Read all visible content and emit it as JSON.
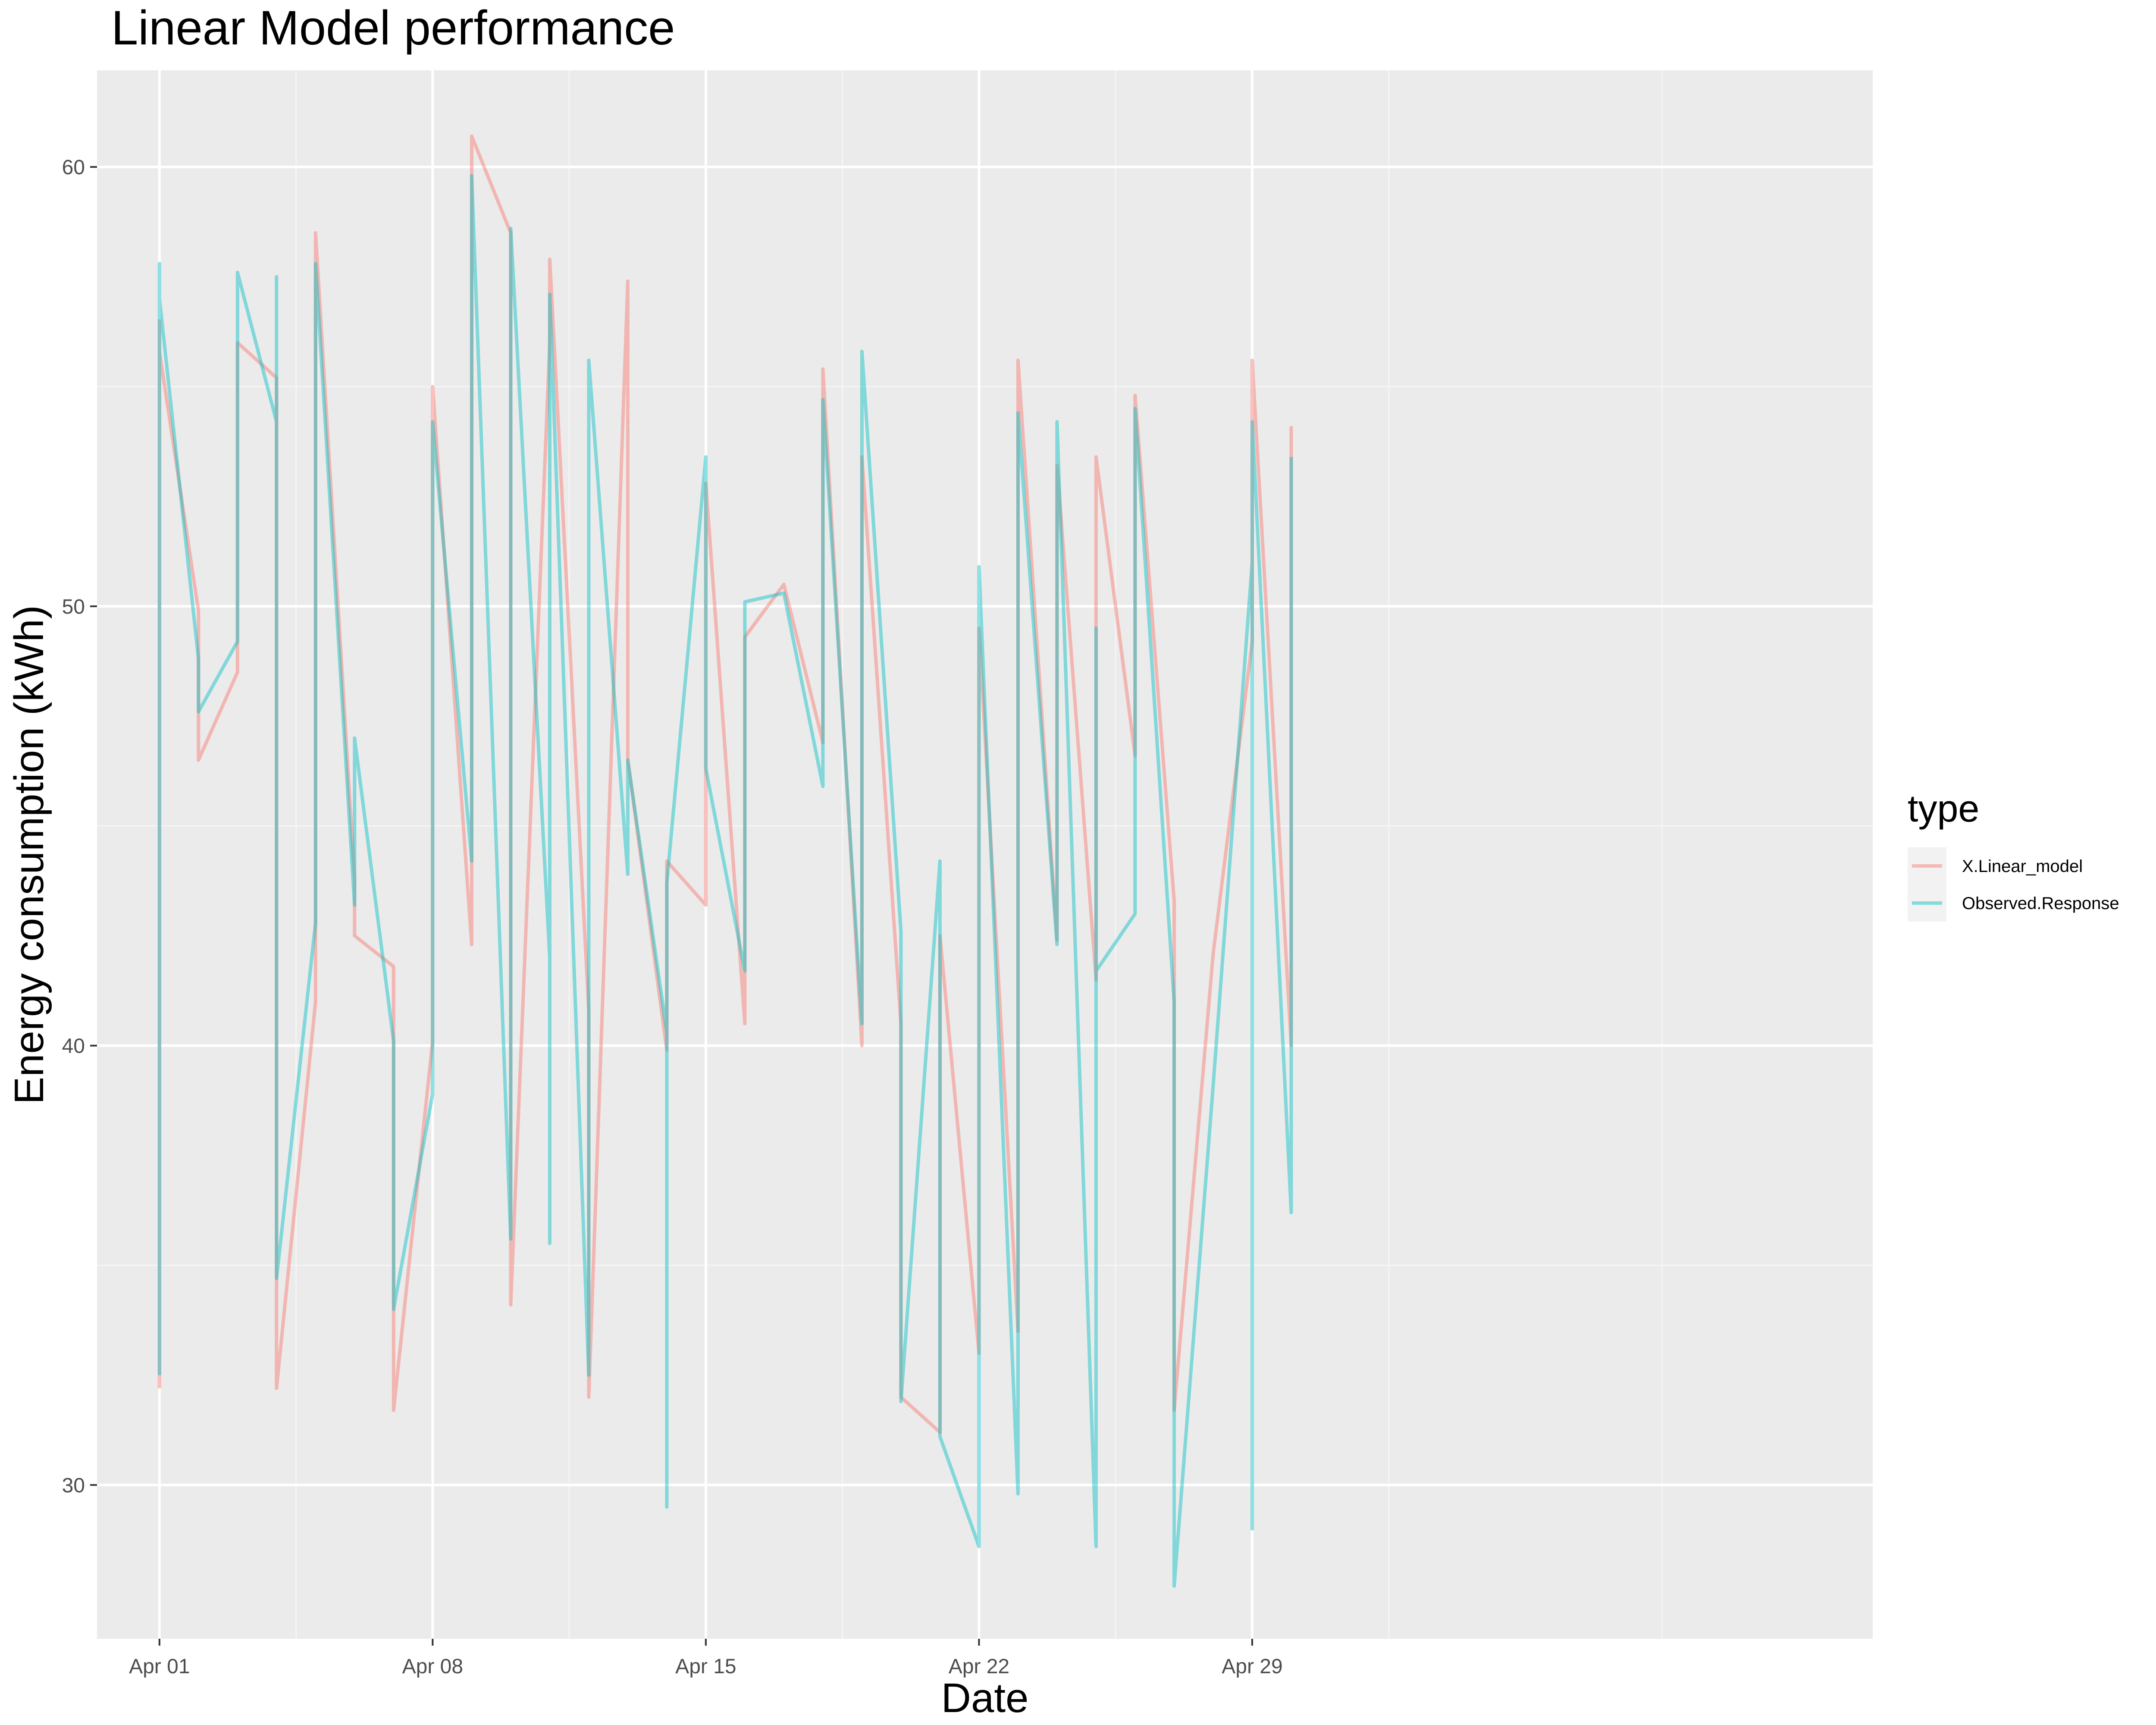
{
  "chart_data": {
    "type": "line",
    "title": "Linear Model performance",
    "xlabel": "Date",
    "ylabel": "Energy consumption (kWh)",
    "xlim": [
      -1.6,
      43.9
    ],
    "ylim": [
      26.5,
      62.2
    ],
    "x_ticks": [
      {
        "x": 0,
        "label": "Apr 01"
      },
      {
        "x": 7,
        "label": "Apr 08"
      },
      {
        "x": 14,
        "label": "Apr 15"
      },
      {
        "x": 21,
        "label": "Apr 22"
      },
      {
        "x": 28,
        "label": "Apr 29"
      }
    ],
    "y_ticks": [
      {
        "y": 30,
        "label": "30"
      },
      {
        "y": 40,
        "label": "40"
      },
      {
        "y": 50,
        "label": "50"
      },
      {
        "y": 60,
        "label": "60"
      }
    ],
    "grid": true,
    "legend_position": "right",
    "legend_title": "type",
    "series": [
      {
        "name": "X.Linear_model",
        "color": "#F8766D",
        "points": [
          [
            0,
            32.2
          ],
          [
            0,
            56.5
          ],
          [
            0,
            55.8
          ],
          [
            1,
            49.9
          ],
          [
            1,
            46.5
          ],
          [
            2,
            48.5
          ],
          [
            2,
            56.0
          ],
          [
            3,
            55.2
          ],
          [
            3,
            32.2
          ],
          [
            4,
            41.0
          ],
          [
            4,
            58.5
          ],
          [
            5,
            43.8
          ],
          [
            5,
            42.5
          ],
          [
            6,
            41.8
          ],
          [
            6,
            31.7
          ],
          [
            7,
            40.1
          ],
          [
            7,
            55.0
          ],
          [
            8,
            42.3
          ],
          [
            8,
            60.7
          ],
          [
            9,
            58.5
          ],
          [
            9,
            34.1
          ],
          [
            10,
            56.0
          ],
          [
            10,
            57.9
          ],
          [
            11,
            40.8
          ],
          [
            11,
            32.0
          ],
          [
            12,
            57.4
          ],
          [
            12,
            46.5
          ],
          [
            13,
            39.9
          ],
          [
            13,
            44.2
          ],
          [
            14,
            43.2
          ],
          [
            14,
            52.8
          ],
          [
            15,
            40.5
          ],
          [
            15,
            49.3
          ],
          [
            16,
            50.5
          ],
          [
            17,
            46.9
          ],
          [
            17,
            55.4
          ],
          [
            18,
            40.0
          ],
          [
            18,
            53.4
          ],
          [
            19,
            40.5
          ],
          [
            19,
            32.0
          ],
          [
            20,
            31.2
          ],
          [
            20,
            42.5
          ],
          [
            21,
            33.0
          ],
          [
            21,
            49.5
          ],
          [
            22,
            33.5
          ],
          [
            22,
            55.6
          ],
          [
            23,
            42.4
          ],
          [
            23,
            53.2
          ],
          [
            24,
            41.5
          ],
          [
            24,
            53.4
          ],
          [
            25,
            46.6
          ],
          [
            25,
            54.8
          ],
          [
            26,
            43.3
          ],
          [
            26,
            31.7
          ],
          [
            27,
            42.1
          ],
          [
            28,
            49.2
          ],
          [
            28,
            55.6
          ],
          [
            29,
            40.0
          ],
          [
            29,
            54.1
          ]
        ]
      },
      {
        "name": "Observed.Response",
        "color": "#00BFC4",
        "points": [
          [
            0,
            32.5
          ],
          [
            0,
            57.8
          ],
          [
            0,
            57.0
          ],
          [
            1,
            48.8
          ],
          [
            1,
            47.6
          ],
          [
            2,
            49.2
          ],
          [
            2,
            57.6
          ],
          [
            3,
            54.2
          ],
          [
            3,
            57.5
          ],
          [
            3,
            34.7
          ],
          [
            4,
            42.8
          ],
          [
            4,
            57.8
          ],
          [
            5,
            43.2
          ],
          [
            5,
            47.0
          ],
          [
            6,
            40.1
          ],
          [
            6,
            34.0
          ],
          [
            7,
            38.9
          ],
          [
            7,
            54.2
          ],
          [
            8,
            44.2
          ],
          [
            8,
            59.8
          ],
          [
            9,
            35.6
          ],
          [
            9,
            58.6
          ],
          [
            10,
            42.0
          ],
          [
            10,
            35.5
          ],
          [
            10,
            57.1
          ],
          [
            11,
            32.5
          ],
          [
            11,
            55.6
          ],
          [
            12,
            43.9
          ],
          [
            12,
            46.5
          ],
          [
            13,
            40.3
          ],
          [
            13,
            29.5
          ],
          [
            13,
            43.7
          ],
          [
            14,
            53.4
          ],
          [
            14,
            46.3
          ],
          [
            15,
            41.7
          ],
          [
            15,
            50.1
          ],
          [
            16,
            50.3
          ],
          [
            17,
            45.9
          ],
          [
            17,
            54.7
          ],
          [
            18,
            40.5
          ],
          [
            18,
            55.8
          ],
          [
            19,
            42.6
          ],
          [
            19,
            31.9
          ],
          [
            20,
            44.2
          ],
          [
            20,
            31.1
          ],
          [
            21,
            28.6
          ],
          [
            21,
            50.9
          ],
          [
            22,
            29.8
          ],
          [
            22,
            54.4
          ],
          [
            23,
            42.3
          ],
          [
            23,
            54.2
          ],
          [
            24,
            28.6
          ],
          [
            24,
            49.5
          ],
          [
            24,
            41.7
          ],
          [
            25,
            43.0
          ],
          [
            25,
            45.2
          ],
          [
            25,
            54.5
          ],
          [
            26,
            41.0
          ],
          [
            26,
            27.7
          ],
          [
            27,
            39.1
          ],
          [
            28,
            51.0
          ],
          [
            28,
            29.0
          ],
          [
            28,
            54.2
          ],
          [
            29,
            36.2
          ],
          [
            29,
            53.4
          ]
        ]
      }
    ]
  }
}
